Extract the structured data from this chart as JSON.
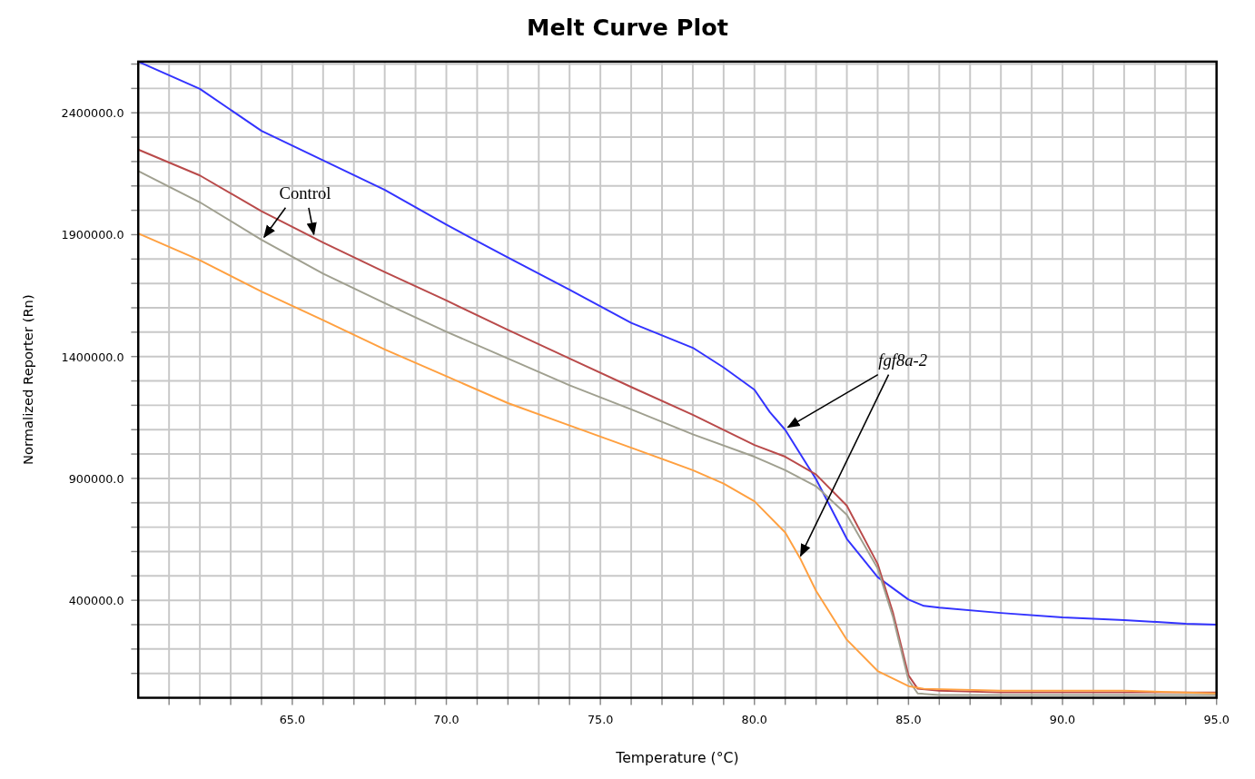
{
  "chart_data": {
    "type": "line",
    "title": "Melt Curve Plot",
    "xlabel": "Temperature (°C)",
    "ylabel": "Normalized Reporter (Rn)",
    "xlim": [
      60,
      95
    ],
    "xticks": [
      {
        "value": 61,
        "label": null
      },
      {
        "value": 62,
        "label": null
      },
      {
        "value": 63,
        "label": null
      },
      {
        "value": 64,
        "label": null
      },
      {
        "value": 65,
        "label": "65.0"
      },
      {
        "value": 66,
        "label": null
      },
      {
        "value": 67,
        "label": null
      },
      {
        "value": 68,
        "label": null
      },
      {
        "value": 69,
        "label": null
      },
      {
        "value": 70,
        "label": "70.0"
      },
      {
        "value": 71,
        "label": null
      },
      {
        "value": 72,
        "label": null
      },
      {
        "value": 73,
        "label": null
      },
      {
        "value": 74,
        "label": null
      },
      {
        "value": 75,
        "label": "75.0"
      },
      {
        "value": 76,
        "label": null
      },
      {
        "value": 77,
        "label": null
      },
      {
        "value": 78,
        "label": null
      },
      {
        "value": 79,
        "label": null
      },
      {
        "value": 80,
        "label": "80.0"
      },
      {
        "value": 81,
        "label": null
      },
      {
        "value": 82,
        "label": null
      },
      {
        "value": 83,
        "label": null
      },
      {
        "value": 84,
        "label": null
      },
      {
        "value": 85,
        "label": "85.0"
      },
      {
        "value": 86,
        "label": null
      },
      {
        "value": 87,
        "label": null
      },
      {
        "value": 88,
        "label": null
      },
      {
        "value": 89,
        "label": null
      },
      {
        "value": 90,
        "label": "90.0"
      },
      {
        "value": 91,
        "label": null
      },
      {
        "value": 92,
        "label": null
      },
      {
        "value": 93,
        "label": null
      },
      {
        "value": 94,
        "label": null
      },
      {
        "value": 95,
        "label": "95.0"
      }
    ],
    "ylim": [
      0,
      2610000
    ],
    "yticks": [
      {
        "value": 100000,
        "label": null
      },
      {
        "value": 200000,
        "label": null
      },
      {
        "value": 300000,
        "label": null
      },
      {
        "value": 400000,
        "label": "400000.0"
      },
      {
        "value": 500000,
        "label": null
      },
      {
        "value": 600000,
        "label": null
      },
      {
        "value": 700000,
        "label": null
      },
      {
        "value": 800000,
        "label": null
      },
      {
        "value": 900000,
        "label": "900000.0"
      },
      {
        "value": 1000000,
        "label": null
      },
      {
        "value": 1100000,
        "label": null
      },
      {
        "value": 1200000,
        "label": null
      },
      {
        "value": 1300000,
        "label": null
      },
      {
        "value": 1400000,
        "label": "1400000.0"
      },
      {
        "value": 1500000,
        "label": null
      },
      {
        "value": 1600000,
        "label": null
      },
      {
        "value": 1700000,
        "label": null
      },
      {
        "value": 1800000,
        "label": null
      },
      {
        "value": 1900000,
        "label": "1900000.0"
      },
      {
        "value": 2000000,
        "label": null
      },
      {
        "value": 2100000,
        "label": null
      },
      {
        "value": 2200000,
        "label": null
      },
      {
        "value": 2300000,
        "label": null
      },
      {
        "value": 2400000,
        "label": "2400000.0"
      },
      {
        "value": 2500000,
        "label": null
      },
      {
        "value": 2600000,
        "label": null
      }
    ],
    "grid": true,
    "series": [
      {
        "color": "#3333ff",
        "x": [
          60,
          62,
          64,
          66,
          68,
          70,
          72,
          74,
          76,
          78,
          79,
          80,
          80.5,
          81,
          82,
          83,
          84,
          85,
          85.5,
          86,
          88,
          90,
          92,
          94,
          95
        ],
        "values": [
          2610000,
          2498000,
          2326000,
          2205000,
          2084000,
          1941000,
          1806000,
          1674000,
          1538000,
          1436000,
          1355000,
          1264000,
          1172000,
          1099000,
          897000,
          652000,
          495000,
          403000,
          377000,
          370000,
          348000,
          330000,
          319000,
          304000,
          300000
        ]
      },
      {
        "color": "#b94a4a",
        "x": [
          60,
          62,
          64,
          66,
          68,
          70,
          72,
          74,
          76,
          78,
          80,
          81,
          82,
          83,
          84,
          84.5,
          85,
          85.3,
          86,
          88,
          95
        ],
        "values": [
          2249000,
          2143000,
          1996000,
          1868000,
          1747000,
          1630000,
          1509000,
          1392000,
          1275000,
          1161000,
          1037000,
          989000,
          916000,
          788000,
          549000,
          348000,
          92000,
          37000,
          29000,
          22000,
          22000
        ]
      },
      {
        "color": "#a0a090",
        "x": [
          60,
          62,
          64,
          66,
          68,
          70,
          72,
          74,
          76,
          78,
          80,
          81,
          82,
          83,
          84,
          84.5,
          85,
          85.3,
          86,
          95
        ],
        "values": [
          2161000,
          2033000,
          1879000,
          1740000,
          1619000,
          1502000,
          1392000,
          1282000,
          1183000,
          1081000,
          989000,
          934000,
          868000,
          751000,
          531000,
          330000,
          73000,
          18000,
          11000,
          11000
        ]
      },
      {
        "color": "#ffa040",
        "x": [
          60,
          62,
          64,
          66,
          68,
          70,
          72,
          74,
          76,
          78,
          79,
          80,
          81,
          81.5,
          82,
          83,
          84,
          85,
          85.5,
          88,
          92,
          95
        ],
        "values": [
          1905000,
          1795000,
          1667000,
          1549000,
          1429000,
          1319000,
          1209000,
          1117000,
          1026000,
          934000,
          879000,
          806000,
          678000,
          568000,
          439000,
          238000,
          110000,
          48000,
          37000,
          29000,
          29000,
          18000
        ]
      }
    ],
    "annotations": [
      {
        "text": "Control",
        "x": 64,
        "y": 1879000
      },
      {
        "text": "fgf8a-2",
        "x": 81,
        "y": 1099000
      }
    ]
  }
}
